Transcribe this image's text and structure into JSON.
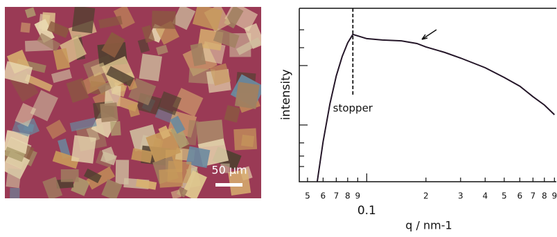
{
  "micrograph": {
    "scale_bar_label": "50 μm"
  },
  "chart_data": {
    "type": "line",
    "x_label": "q / nm-1",
    "y_label": "intensity",
    "x": [
      0.056,
      0.06,
      0.065,
      0.07,
      0.075,
      0.08,
      0.085,
      0.09,
      0.1,
      0.12,
      0.15,
      0.18,
      0.2,
      0.25,
      0.3,
      0.4,
      0.5,
      0.6,
      0.7,
      0.8,
      0.9
    ],
    "series": [
      {
        "color": "#241628",
        "values": [
          0.111,
          0.526,
          2.29,
          6.7,
          14.2,
          24.2,
          33.4,
          31.6,
          28.4,
          26.9,
          26.1,
          23.5,
          20.6,
          16.6,
          13.4,
          9.2,
          6.3,
          4.5,
          3.0,
          2.17,
          1.49
        ]
      }
    ],
    "xscale": "log",
    "yscale": "log",
    "xlim": [
      0.0454,
      0.92
    ],
    "ylim": [
      0.111,
      92
    ],
    "xticks": [
      {
        "value": 0.05,
        "label": "5"
      },
      {
        "value": 0.06,
        "label": "6"
      },
      {
        "value": 0.07,
        "label": "7"
      },
      {
        "value": 0.08,
        "label": "8"
      },
      {
        "value": 0.09,
        "label": "9"
      },
      0.1,
      {
        "value": 0.2,
        "label": "2"
      },
      {
        "value": 0.3,
        "label": "3"
      },
      {
        "value": 0.4,
        "label": "4"
      },
      {
        "value": 0.5,
        "label": "5"
      },
      {
        "value": 0.6,
        "label": "6"
      },
      {
        "value": 0.7,
        "label": "7"
      },
      {
        "value": 0.8,
        "label": "8"
      },
      {
        "value": 0.9,
        "label": "9"
      }
    ],
    "yticks": [
      0.2,
      0.3,
      0.5,
      1,
      10,
      20,
      40
    ],
    "annotations": [
      {
        "text": "stopper",
        "x": 0.085
      }
    ]
  }
}
